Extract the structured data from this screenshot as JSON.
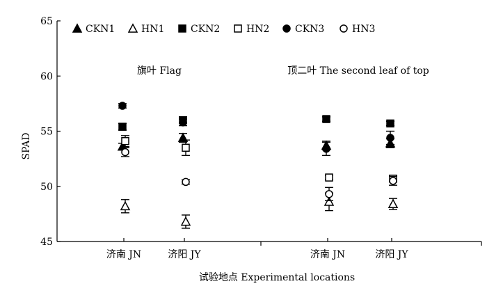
{
  "chart_data": {
    "type": "scatter",
    "xlabel": "试验地点 Experimental locations",
    "ylabel": "SPAD",
    "ylim": [
      45,
      65
    ],
    "yticks": [
      45,
      50,
      55,
      60,
      65
    ],
    "grid": false,
    "legend_position": "top-left",
    "panels": [
      {
        "title": "旗叶 Flag",
        "categories": [
          "济南 JN",
          "济阳 JY"
        ]
      },
      {
        "title": "顶二叶 The second leaf of top",
        "categories": [
          "济南 JN",
          "济阳 JY"
        ]
      }
    ],
    "series": [
      {
        "name": "CKN1",
        "marker": "triangle-filled",
        "values": [
          [
            53.6,
            54.4
          ],
          [
            53.7,
            53.9
          ]
        ],
        "errors": [
          [
            0.3,
            0.4
          ],
          [
            0.4,
            0.4
          ]
        ]
      },
      {
        "name": "HN1",
        "marker": "triangle-open",
        "values": [
          [
            48.2,
            46.8
          ],
          [
            48.6,
            48.4
          ]
        ],
        "errors": [
          [
            0.6,
            0.6
          ],
          [
            0.8,
            0.5
          ]
        ]
      },
      {
        "name": "CKN2",
        "marker": "square-filled",
        "values": [
          [
            55.4,
            56.0
          ],
          [
            56.1,
            55.7
          ]
        ],
        "errors": [
          [
            0.3,
            0.3
          ],
          [
            0.2,
            0.2
          ]
        ]
      },
      {
        "name": "HN2",
        "marker": "square-open",
        "values": [
          [
            54.1,
            53.5
          ],
          [
            50.8,
            50.7
          ]
        ],
        "errors": [
          [
            0.5,
            0.7
          ],
          [
            0.2,
            0.3
          ]
        ]
      },
      {
        "name": "CKN3",
        "marker": "circle-filled",
        "values": [
          [
            57.3,
            55.8
          ],
          [
            53.4,
            54.4
          ]
        ],
        "errors": [
          [
            0.2,
            0.3
          ],
          [
            0.6,
            0.6
          ]
        ]
      },
      {
        "name": "HN3",
        "marker": "circle-open",
        "values": [
          [
            53.1,
            50.4
          ],
          [
            49.3,
            50.5
          ]
        ],
        "errors": [
          [
            0.4,
            0.2
          ],
          [
            0.6,
            0.4
          ]
        ]
      }
    ]
  }
}
